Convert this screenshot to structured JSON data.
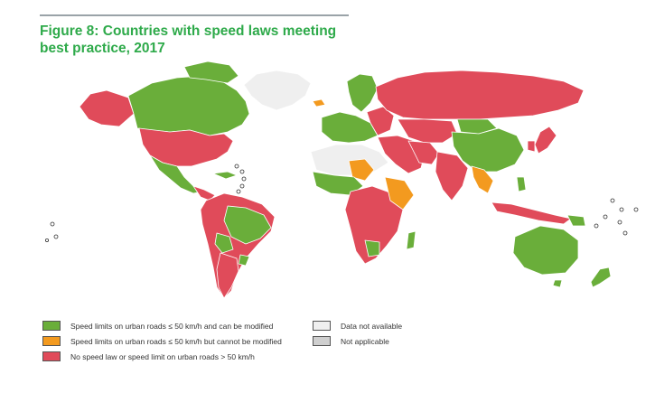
{
  "figure": {
    "title": "Figure 8: Countries with speed laws meeting best practice, 2017"
  },
  "colors": {
    "meets": "#6aae3a",
    "partial": "#f39a1f",
    "none": "#e04b5a",
    "no_data": "#efefef",
    "not_applicable": "#cfcfcf",
    "title": "#2eaa4a"
  },
  "legend": {
    "items": [
      {
        "key": "meets",
        "label": "Speed limits on urban roads ≤ 50 km/h and can be modified",
        "color": "#6aae3a"
      },
      {
        "key": "partial",
        "label": "Speed limits on urban roads ≤ 50 km/h but cannot be modified",
        "color": "#f39a1f"
      },
      {
        "key": "none",
        "label": "No speed law or speed limit on urban roads > 50 km/h",
        "color": "#e04b5a"
      },
      {
        "key": "no_data",
        "label": "Data not available",
        "color": "#efefef"
      },
      {
        "key": "not_applicable",
        "label": "Not applicable",
        "color": "#cfcfcf"
      }
    ]
  }
}
